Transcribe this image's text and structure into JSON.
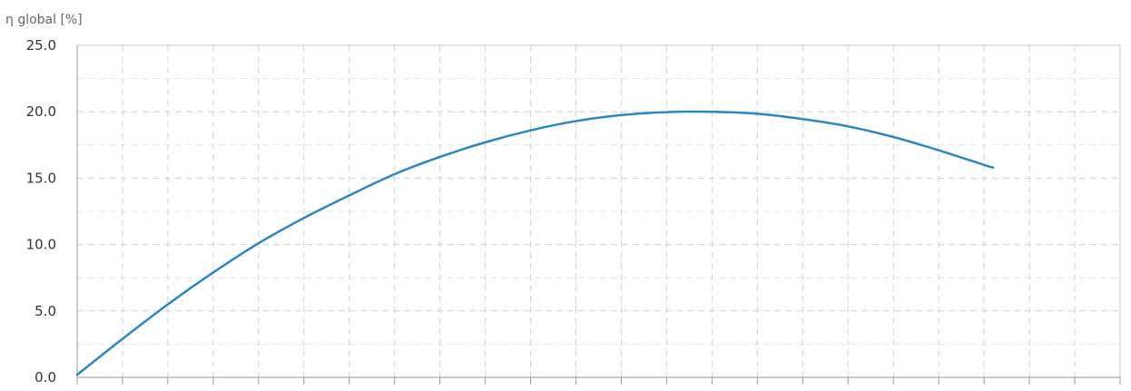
{
  "chart_data": {
    "type": "line",
    "title": "",
    "xlabel": "",
    "ylabel": "η global [%]",
    "ylim": [
      0,
      25
    ],
    "yticks": [
      0,
      5,
      10,
      15,
      20,
      25
    ],
    "ytick_labels": [
      "0.0",
      "5.0",
      "10.0",
      "15.0",
      "20.0",
      "25.0"
    ],
    "xlim": [
      0,
      23
    ],
    "grid": true,
    "legend": "none",
    "series": [
      {
        "color": "#2a87c0",
        "x": [
          0,
          1,
          2,
          3,
          4,
          5,
          6,
          7,
          8,
          9,
          10,
          11,
          12,
          13,
          14,
          15,
          16,
          17,
          18,
          19,
          20,
          20.2
        ],
        "y": [
          0.2,
          2.9,
          5.5,
          7.9,
          10.1,
          12.0,
          13.7,
          15.3,
          16.6,
          17.7,
          18.6,
          19.3,
          19.75,
          19.97,
          20.0,
          19.85,
          19.45,
          18.9,
          18.1,
          17.1,
          16.0,
          15.8
        ]
      }
    ]
  }
}
